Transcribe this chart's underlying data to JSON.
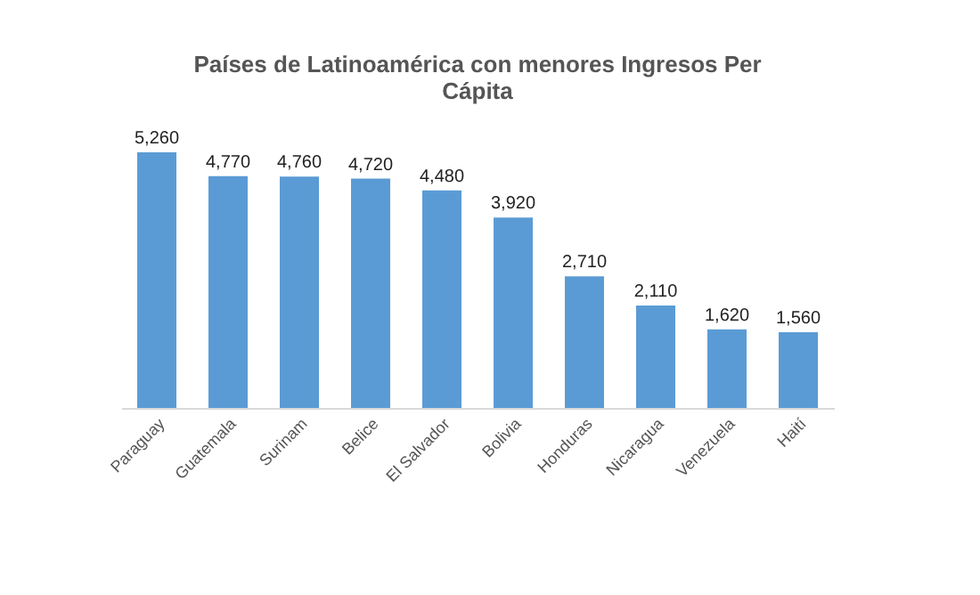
{
  "chart_data": {
    "type": "bar",
    "title": "Países de Latinoamérica con menores Ingresos Per Cápita",
    "categories": [
      "Paraguay",
      "Guatemala",
      "Surinam",
      "Belice",
      "El Salvador",
      "Bolivia",
      "Honduras",
      "Nicaragua",
      "Venezuela",
      "Haití"
    ],
    "values": [
      5260,
      4770,
      4760,
      4720,
      4480,
      3920,
      2710,
      2110,
      1620,
      1560
    ],
    "value_labels": [
      "5,260",
      "4,770",
      "4,760",
      "4,720",
      "4,480",
      "3,920",
      "2,710",
      "2,110",
      "1,620",
      "1,560"
    ],
    "color": "#5b9bd5",
    "grid": false,
    "tick_labels": "x"
  }
}
